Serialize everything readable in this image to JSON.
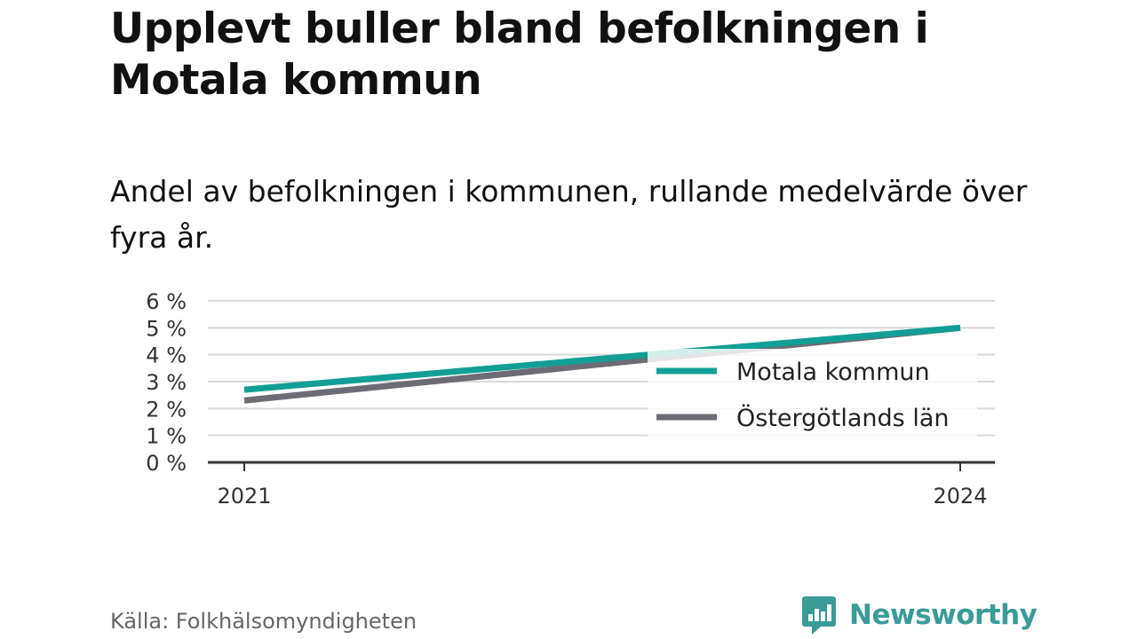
{
  "header": {
    "title": "Upplevt buller bland befolkningen i Motala kommun",
    "subtitle": "Andel av befolkningen i kommunen, rullande medelvärde över fyra år."
  },
  "footer": {
    "source": "Källa: Folkhälsomyndigheten",
    "brand": "Newsworthy"
  },
  "colors": {
    "motala": "#119f95",
    "ostergotland": "#6d6c74",
    "axis": "#333333",
    "grid": "#d9d9d9",
    "brand": "#3a9b97"
  },
  "icons": {
    "brand_logo": "bar-chart-speech-bubble-icon"
  },
  "chart_data": {
    "type": "line",
    "title": "",
    "xlabel": "",
    "ylabel": "",
    "x": [
      2021,
      2024
    ],
    "x_tick_labels": [
      "2021",
      "2024"
    ],
    "ylim": [
      0,
      6
    ],
    "y_ticks": [
      0,
      1,
      2,
      3,
      4,
      5,
      6
    ],
    "y_tick_labels": [
      "0 %",
      "1 %",
      "2 %",
      "3 %",
      "4 %",
      "5 %",
      "6 %"
    ],
    "grid": true,
    "legend_position": "bottom-right",
    "series": [
      {
        "name": "Motala kommun",
        "values": [
          2.7,
          5.0
        ]
      },
      {
        "name": "Östergötlands län",
        "values": [
          2.3,
          5.0
        ]
      }
    ]
  }
}
